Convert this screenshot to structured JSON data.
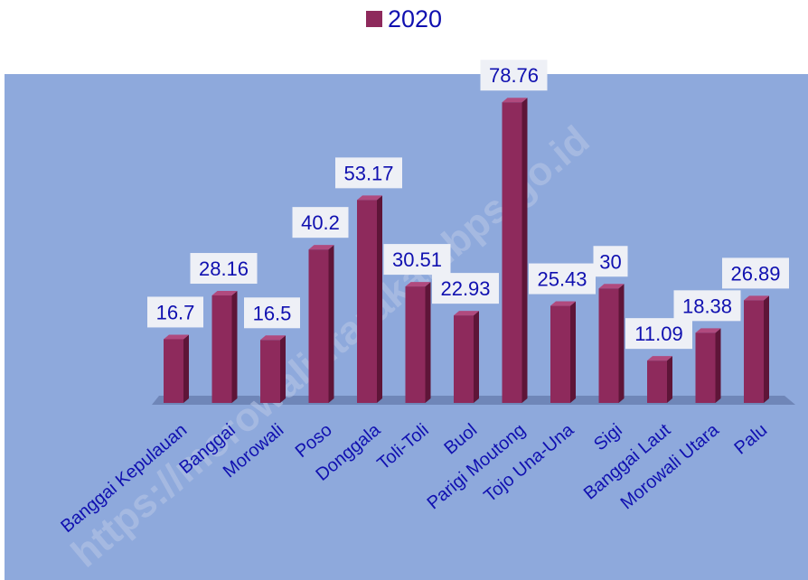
{
  "chart_data": {
    "type": "bar",
    "categories": [
      "Banggai Kepulauan",
      "Banggai",
      "Morowali",
      "Poso",
      "Donggala",
      "Toli-Toli",
      "Buol",
      "Parigi Moutong",
      "Tojo Una-Una",
      "Sigi",
      "Banggai Laut",
      "Morowali Utara",
      "Palu"
    ],
    "series": [
      {
        "name": "2020",
        "values": [
          16.7,
          28.16,
          16.5,
          40.2,
          53.17,
          30.51,
          22.93,
          78.76,
          25.43,
          30,
          11.09,
          18.38,
          26.89
        ]
      }
    ],
    "value_labels": [
      "16.7",
      "28.16",
      "16.5",
      "40.2",
      "53.17",
      "30.51",
      "22.93",
      "78.76",
      "25.43",
      "30",
      "11.09",
      "18.38",
      "26.89"
    ],
    "ylim": [
      0,
      80
    ],
    "grid": false,
    "legend_position": "top-center",
    "watermark": "https://morowaliutarakab.bps.go.id",
    "colors": {
      "bar": "#8e2a5c",
      "bar_side": "#5e1538",
      "bar_top": "#b04a7e",
      "plot_bg": "#8ea9dc",
      "floor": "#6f86b8",
      "label_text": "#1010b0",
      "label_bg": "#eef0f6"
    }
  }
}
